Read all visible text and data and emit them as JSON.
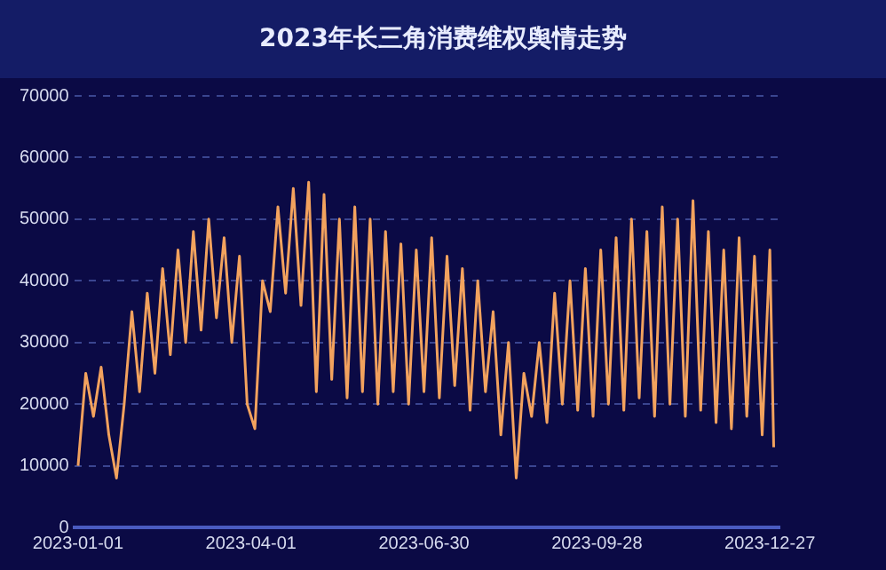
{
  "chart_data": {
    "type": "line",
    "title": "2023年长三角消费维权舆情走势",
    "x": [
      "2023-01-01",
      "2023-01-05",
      "2023-01-09",
      "2023-01-13",
      "2023-01-17",
      "2023-01-21",
      "2023-01-25",
      "2023-01-29",
      "2023-02-02",
      "2023-02-06",
      "2023-02-10",
      "2023-02-14",
      "2023-02-18",
      "2023-02-22",
      "2023-02-26",
      "2023-03-02",
      "2023-03-06",
      "2023-03-10",
      "2023-03-14",
      "2023-03-18",
      "2023-03-22",
      "2023-03-26",
      "2023-03-30",
      "2023-04-03",
      "2023-04-07",
      "2023-04-11",
      "2023-04-15",
      "2023-04-19",
      "2023-04-23",
      "2023-04-27",
      "2023-05-01",
      "2023-05-05",
      "2023-05-09",
      "2023-05-13",
      "2023-05-17",
      "2023-05-21",
      "2023-05-25",
      "2023-05-29",
      "2023-06-02",
      "2023-06-06",
      "2023-06-10",
      "2023-06-14",
      "2023-06-18",
      "2023-06-22",
      "2023-06-26",
      "2023-06-30",
      "2023-07-04",
      "2023-07-08",
      "2023-07-12",
      "2023-07-16",
      "2023-07-20",
      "2023-07-24",
      "2023-07-28",
      "2023-08-01",
      "2023-08-05",
      "2023-08-09",
      "2023-08-13",
      "2023-08-17",
      "2023-08-21",
      "2023-08-25",
      "2023-08-29",
      "2023-09-02",
      "2023-09-06",
      "2023-09-10",
      "2023-09-14",
      "2023-09-18",
      "2023-09-22",
      "2023-09-26",
      "2023-09-30",
      "2023-10-04",
      "2023-10-08",
      "2023-10-12",
      "2023-10-16",
      "2023-10-20",
      "2023-10-24",
      "2023-10-28",
      "2023-11-01",
      "2023-11-05",
      "2023-11-09",
      "2023-11-13",
      "2023-11-17",
      "2023-11-21",
      "2023-11-25",
      "2023-11-29",
      "2023-12-03",
      "2023-12-07",
      "2023-12-11",
      "2023-12-15",
      "2023-12-19",
      "2023-12-23",
      "2023-12-27",
      "2023-12-29"
    ],
    "series": [
      {
        "color": "#f2a25e",
        "values": [
          10000,
          25000,
          18000,
          26000,
          15000,
          8000,
          20000,
          35000,
          22000,
          38000,
          25000,
          42000,
          28000,
          45000,
          30000,
          48000,
          32000,
          50000,
          34000,
          47000,
          30000,
          44000,
          20000,
          16000,
          40000,
          35000,
          52000,
          38000,
          55000,
          36000,
          56000,
          22000,
          54000,
          24000,
          50000,
          21000,
          52000,
          22000,
          50000,
          20000,
          48000,
          22000,
          46000,
          20000,
          45000,
          22000,
          47000,
          21000,
          44000,
          23000,
          42000,
          19000,
          40000,
          22000,
          35000,
          15000,
          30000,
          8000,
          25000,
          18000,
          30000,
          17000,
          38000,
          20000,
          40000,
          19000,
          42000,
          18000,
          45000,
          20000,
          47000,
          19000,
          50000,
          21000,
          48000,
          18000,
          52000,
          20000,
          50000,
          18000,
          53000,
          19000,
          48000,
          17000,
          45000,
          16000,
          47000,
          18000,
          44000,
          15000,
          45000,
          13000
        ]
      }
    ],
    "xlim": [
      "2022-12-30",
      "2024-01-01"
    ],
    "xticks": [
      "2023-01-01",
      "2023-04-01",
      "2023-06-30",
      "2023-09-28",
      "2023-12-27"
    ],
    "ylim": [
      0,
      70000
    ],
    "yticks": [
      0,
      10000,
      20000,
      30000,
      40000,
      50000,
      60000,
      70000
    ],
    "grid": "y",
    "legend": false,
    "marker": "none",
    "line_style": "solid"
  }
}
